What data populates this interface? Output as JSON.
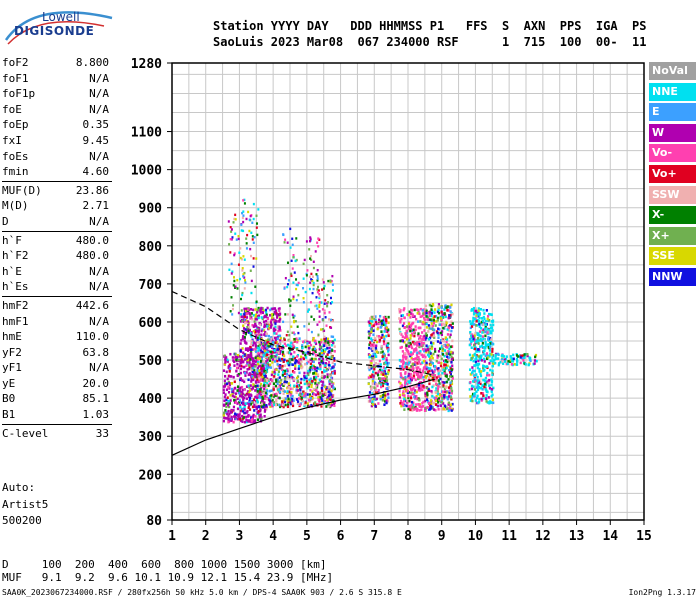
{
  "logo": {
    "line1": "Lowell",
    "line2": "DIGISONDE"
  },
  "header": {
    "labels": "Station YYYY DAY   DDD HHMMSS P1   FFS  S  AXN  PPS  IGA  PS",
    "values": "SaoLuis 2023 Mar08  067 234000 RSF      1  715  100  00-  11"
  },
  "params_group1": [
    {
      "label": "foF2",
      "value": "8.800"
    },
    {
      "label": "foF1",
      "value": "N/A"
    },
    {
      "label": "foF1p",
      "value": "N/A"
    },
    {
      "label": "foE",
      "value": "N/A"
    },
    {
      "label": "foEp",
      "value": "0.35"
    },
    {
      "label": "fxI",
      "value": "9.45"
    },
    {
      "label": "foEs",
      "value": "N/A"
    },
    {
      "label": "fmin",
      "value": "4.60"
    }
  ],
  "params_group2": [
    {
      "label": "MUF(D)",
      "value": "23.86"
    },
    {
      "label": "M(D)",
      "value": "2.71"
    },
    {
      "label": "D",
      "value": "N/A"
    }
  ],
  "params_group3": [
    {
      "label": "h`F",
      "value": "480.0"
    },
    {
      "label": "h`F2",
      "value": "480.0"
    },
    {
      "label": "h`E",
      "value": "N/A"
    },
    {
      "label": "h`Es",
      "value": "N/A"
    }
  ],
  "params_group4": [
    {
      "label": "hmF2",
      "value": "442.6"
    },
    {
      "label": "hmF1",
      "value": "N/A"
    },
    {
      "label": "hmE",
      "value": "110.0"
    },
    {
      "label": "yF2",
      "value": "63.8"
    },
    {
      "label": "yF1",
      "value": "N/A"
    },
    {
      "label": "yE",
      "value": "20.0"
    },
    {
      "label": "B0",
      "value": "85.1"
    },
    {
      "label": "B1",
      "value": "1.03"
    }
  ],
  "params_group5": [
    {
      "label": "C-level",
      "value": "33"
    }
  ],
  "auto": {
    "line1": "Auto:",
    "line2": "Artist5",
    "line3": "500200"
  },
  "legend": [
    {
      "label": "NoVal",
      "color": "#a0a0a0"
    },
    {
      "label": "NNE",
      "color": "#00e0f0"
    },
    {
      "label": "E",
      "color": "#3ca0ff"
    },
    {
      "label": "W",
      "color": "#b000b0"
    },
    {
      "label": "Vo-",
      "color": "#ff40b0"
    },
    {
      "label": "Vo+",
      "color": "#e00020"
    },
    {
      "label": "SSW",
      "color": "#f0b0b0"
    },
    {
      "label": "X-",
      "color": "#008000"
    },
    {
      "label": "X+",
      "color": "#70b050"
    },
    {
      "label": "SSE",
      "color": "#d8d800"
    },
    {
      "label": "NNW",
      "color": "#1010e0"
    }
  ],
  "muf_table": {
    "d_row": "D     100  200  400  600  800 1000 1500 3000 [km]",
    "muf_row": "MUF   9.1  9.2  9.6 10.1 10.9 12.1 15.4 23.9 [MHz]"
  },
  "footer": {
    "left": "SAA0K_2023067234000.RSF / 280fx256h 50 kHz 5.0 km / DPS-4 SAA0K 903 / 2.6 S 315.8 E",
    "right": "Ion2Png 1.3.17"
  },
  "chart_data": {
    "type": "scatter",
    "xlim": [
      1,
      15
    ],
    "ylim": [
      80,
      1280
    ],
    "x_ticks": [
      "1",
      "2",
      "3",
      "4",
      "5",
      "6",
      "7",
      "8",
      "9",
      "10",
      "11",
      "12",
      "13",
      "14",
      "15"
    ],
    "y_ticks": [
      "80",
      "200",
      "300",
      "400",
      "500",
      "600",
      "700",
      "800",
      "900",
      "1000",
      "1100",
      "1280"
    ],
    "grid": true,
    "clusters": [
      {
        "x": [
          2.5,
          3.8
        ],
        "y": [
          340,
          520
        ],
        "dominant": "W"
      },
      {
        "x": [
          3.0,
          4.2
        ],
        "y": [
          520,
          640
        ],
        "dominant": "W"
      },
      {
        "x": [
          3.5,
          5.8
        ],
        "y": [
          380,
          560
        ],
        "dominant": "mixed"
      },
      {
        "x": [
          6.8,
          7.4
        ],
        "y": [
          380,
          620
        ],
        "dominant": "mixed"
      },
      {
        "x": [
          7.7,
          8.5
        ],
        "y": [
          370,
          640
        ],
        "dominant": "Vo-"
      },
      {
        "x": [
          8.5,
          9.3
        ],
        "y": [
          370,
          650
        ],
        "dominant": "mixed"
      },
      {
        "x": [
          9.8,
          10.5
        ],
        "y": [
          390,
          640
        ],
        "dominant": "NNE"
      },
      {
        "x": [
          10.5,
          11.8
        ],
        "y": [
          490,
          520
        ],
        "dominant": "NNE"
      }
    ],
    "trace_upper": [
      [
        1.0,
        680
      ],
      [
        2.0,
        640
      ],
      [
        3.0,
        580
      ],
      [
        4.0,
        540
      ],
      [
        5.0,
        520
      ],
      [
        6.0,
        495
      ],
      [
        7.0,
        485
      ],
      [
        8.0,
        475
      ],
      [
        8.8,
        460
      ]
    ],
    "trace_lower": [
      [
        1.0,
        250
      ],
      [
        2.0,
        290
      ],
      [
        3.0,
        320
      ],
      [
        4.0,
        350
      ],
      [
        5.0,
        375
      ],
      [
        6.0,
        395
      ],
      [
        7.0,
        410
      ],
      [
        8.0,
        430
      ],
      [
        8.8,
        450
      ]
    ]
  }
}
